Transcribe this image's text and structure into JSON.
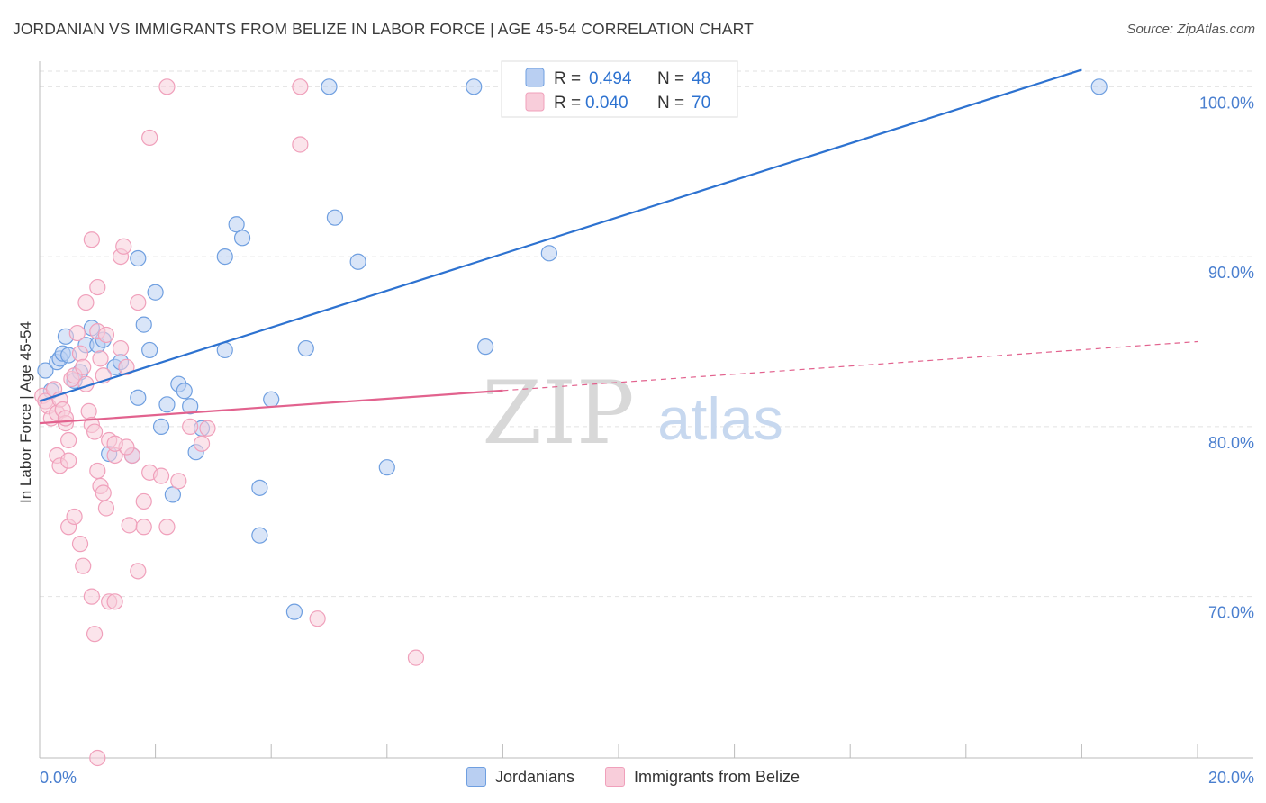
{
  "header": {
    "title": "JORDANIAN VS IMMIGRANTS FROM BELIZE IN LABOR FORCE | AGE 45-54 CORRELATION CHART",
    "source": "Source: ZipAtlas.com"
  },
  "watermark": {
    "zip": "ZIP",
    "atlas": "atlas"
  },
  "chart_data": {
    "type": "scatter",
    "title": "JORDANIAN VS IMMIGRANTS FROM BELIZE IN LABOR FORCE | AGE 45-54 CORRELATION CHART",
    "xlabel": "",
    "ylabel": "In Labor Force | Age 45-54",
    "xlim": [
      0,
      20
    ],
    "ylim": [
      60.5,
      101.5
    ],
    "x_tick_labels": [
      "0.0%",
      "20.0%"
    ],
    "y_ticks": [
      {
        "value": 100,
        "label": "100.0%"
      },
      {
        "value": 90,
        "label": "90.0%"
      },
      {
        "value": 80,
        "label": "80.0%"
      },
      {
        "value": 70,
        "label": "70.0%"
      }
    ],
    "grid": true,
    "legend_top": [
      {
        "r_label": "R =",
        "r_value": "0.494",
        "n_label": "N =",
        "n_value": "48"
      },
      {
        "r_label": "R =",
        "r_value": "0.040",
        "n_label": "N =",
        "n_value": "70"
      }
    ],
    "series": [
      {
        "name": "Jordanians",
        "color": "#6f9fe0",
        "fill": "#b9cff2",
        "line_color": "#2d72d0",
        "trend": {
          "x0": 0,
          "y0": 81.5,
          "x1": 18.0,
          "y1": 101.0,
          "dashed_from": null
        },
        "points": [
          [
            0.1,
            83.3
          ],
          [
            0.2,
            82.1
          ],
          [
            0.3,
            83.8
          ],
          [
            0.35,
            84.0
          ],
          [
            0.4,
            84.3
          ],
          [
            0.45,
            85.3
          ],
          [
            0.5,
            84.2
          ],
          [
            0.6,
            82.7
          ],
          [
            0.7,
            83.2
          ],
          [
            0.8,
            84.8
          ],
          [
            0.9,
            85.8
          ],
          [
            1.0,
            84.8
          ],
          [
            1.1,
            85.1
          ],
          [
            1.3,
            83.5
          ],
          [
            1.4,
            83.8
          ],
          [
            1.2,
            78.4
          ],
          [
            1.6,
            78.3
          ],
          [
            1.7,
            89.9
          ],
          [
            1.7,
            81.7
          ],
          [
            1.8,
            86.0
          ],
          [
            1.9,
            84.5
          ],
          [
            2.0,
            87.9
          ],
          [
            2.1,
            80.0
          ],
          [
            2.2,
            81.3
          ],
          [
            2.3,
            76.0
          ],
          [
            2.4,
            82.5
          ],
          [
            2.5,
            82.1
          ],
          [
            2.6,
            81.2
          ],
          [
            2.7,
            78.5
          ],
          [
            2.8,
            79.9
          ],
          [
            3.2,
            90.0
          ],
          [
            3.2,
            84.5
          ],
          [
            3.4,
            91.9
          ],
          [
            3.5,
            91.1
          ],
          [
            3.8,
            76.4
          ],
          [
            3.8,
            73.6
          ],
          [
            4.0,
            81.6
          ],
          [
            4.4,
            69.1
          ],
          [
            4.6,
            84.6
          ],
          [
            5.0,
            100.0
          ],
          [
            5.1,
            92.3
          ],
          [
            5.5,
            89.7
          ],
          [
            6.0,
            77.6
          ],
          [
            7.5,
            100.0
          ],
          [
            7.7,
            84.7
          ],
          [
            8.3,
            100.0
          ],
          [
            8.8,
            90.2
          ],
          [
            18.3,
            100.0
          ]
        ]
      },
      {
        "name": "Immigrants from Belize",
        "color": "#f0a0bb",
        "fill": "#f8cdda",
        "line_color": "#e2628e",
        "trend": {
          "x0": 0,
          "y0": 80.2,
          "x1": 20,
          "y1": 85.0,
          "dashed_from": 8.0
        },
        "points": [
          [
            0.05,
            81.8
          ],
          [
            0.1,
            81.5
          ],
          [
            0.15,
            81.2
          ],
          [
            0.2,
            80.5
          ],
          [
            0.25,
            82.2
          ],
          [
            0.3,
            80.8
          ],
          [
            0.35,
            81.6
          ],
          [
            0.4,
            81.0
          ],
          [
            0.45,
            80.2
          ],
          [
            0.5,
            79.2
          ],
          [
            0.55,
            82.8
          ],
          [
            0.6,
            83.0
          ],
          [
            0.65,
            85.5
          ],
          [
            0.7,
            84.3
          ],
          [
            0.75,
            83.5
          ],
          [
            0.8,
            82.5
          ],
          [
            0.85,
            80.9
          ],
          [
            0.9,
            80.1
          ],
          [
            0.95,
            79.7
          ],
          [
            1.0,
            85.6
          ],
          [
            1.05,
            84.0
          ],
          [
            1.1,
            83.0
          ],
          [
            1.15,
            85.4
          ],
          [
            1.2,
            79.2
          ],
          [
            1.3,
            78.3
          ],
          [
            1.4,
            84.6
          ],
          [
            1.5,
            83.5
          ],
          [
            1.6,
            78.3
          ],
          [
            1.7,
            87.3
          ],
          [
            1.8,
            75.6
          ],
          [
            0.3,
            78.3
          ],
          [
            0.35,
            77.7
          ],
          [
            0.45,
            80.5
          ],
          [
            0.5,
            74.1
          ],
          [
            0.6,
            74.7
          ],
          [
            0.7,
            73.1
          ],
          [
            0.75,
            71.8
          ],
          [
            0.8,
            87.3
          ],
          [
            0.9,
            70.0
          ],
          [
            0.95,
            67.8
          ],
          [
            1.0,
            77.4
          ],
          [
            1.05,
            76.5
          ],
          [
            1.1,
            76.1
          ],
          [
            1.15,
            75.2
          ],
          [
            1.2,
            69.7
          ],
          [
            1.3,
            69.7
          ],
          [
            1.4,
            90.0
          ],
          [
            1.45,
            90.6
          ],
          [
            1.5,
            78.8
          ],
          [
            1.55,
            74.2
          ],
          [
            0.9,
            91.0
          ],
          [
            1.0,
            88.2
          ],
          [
            1.3,
            79.0
          ],
          [
            1.7,
            71.5
          ],
          [
            1.8,
            74.1
          ],
          [
            1.9,
            77.3
          ],
          [
            2.1,
            77.1
          ],
          [
            2.2,
            74.1
          ],
          [
            2.4,
            76.8
          ],
          [
            2.6,
            80.0
          ],
          [
            2.8,
            79.0
          ],
          [
            2.9,
            79.9
          ],
          [
            2.2,
            100.0
          ],
          [
            1.9,
            97.0
          ],
          [
            4.5,
            100.0
          ],
          [
            4.5,
            96.6
          ],
          [
            4.8,
            68.7
          ],
          [
            6.5,
            66.4
          ],
          [
            1.0,
            60.5
          ],
          [
            0.5,
            78.0
          ]
        ]
      }
    ]
  }
}
